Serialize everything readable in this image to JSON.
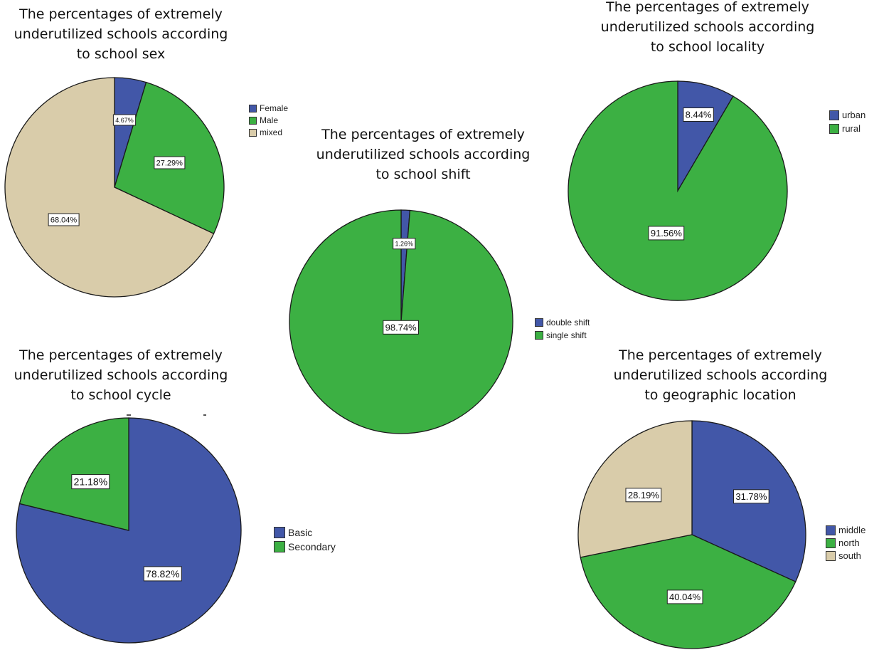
{
  "colors": {
    "blue": "#4257a8",
    "green": "#3cb043",
    "tan": "#d9ccaa",
    "edge": "#1a1a1a"
  },
  "chart_data": [
    {
      "id": "sex",
      "type": "pie",
      "title_lines": [
        "The percentages of extremely",
        "underutilized schools according",
        "to school sex"
      ],
      "categories": [
        "Female",
        "Male",
        "mixed"
      ],
      "values": [
        4.67,
        27.29,
        68.04
      ],
      "labels": [
        "4.67%",
        "27.29%",
        "68.04%"
      ],
      "colors": [
        "#4257a8",
        "#3cb043",
        "#d9ccaa"
      ],
      "legend": "right"
    },
    {
      "id": "shift",
      "type": "pie",
      "title_lines": [
        "The percentages of extremely",
        "underutilized schools according",
        "to school shift"
      ],
      "categories": [
        "double shift",
        "single shift"
      ],
      "values": [
        1.26,
        98.74
      ],
      "labels": [
        "1.26%",
        "98.74%"
      ],
      "colors": [
        "#4257a8",
        "#3cb043"
      ],
      "legend": "right"
    },
    {
      "id": "locality",
      "type": "pie",
      "title_lines": [
        "The percentages of extremely",
        "underutilized schools according",
        "to school locality"
      ],
      "categories": [
        "urban",
        "rural"
      ],
      "values": [
        8.44,
        91.56
      ],
      "labels": [
        "8.44%",
        "91.56%"
      ],
      "colors": [
        "#4257a8",
        "#3cb043"
      ],
      "legend": "right"
    },
    {
      "id": "cycle",
      "type": "pie",
      "title_lines": [
        "The percentages of extremely",
        "underutilized schools according",
        "to school cycle"
      ],
      "categories": [
        "Basic",
        "Secondary"
      ],
      "values": [
        78.82,
        21.18
      ],
      "labels": [
        "78.82%",
        "21.18%"
      ],
      "colors": [
        "#4257a8",
        "#3cb043"
      ],
      "legend": "right"
    },
    {
      "id": "geo",
      "type": "pie",
      "title_lines": [
        "The percentages of extremely",
        "underutilized schools according",
        "to geographic location"
      ],
      "categories": [
        "middle",
        "north",
        "south"
      ],
      "values": [
        31.78,
        40.04,
        28.19
      ],
      "labels": [
        "31.78%",
        "40.04%",
        "28.19%"
      ],
      "colors": [
        "#4257a8",
        "#3cb043",
        "#d9ccaa"
      ],
      "legend": "right"
    }
  ]
}
